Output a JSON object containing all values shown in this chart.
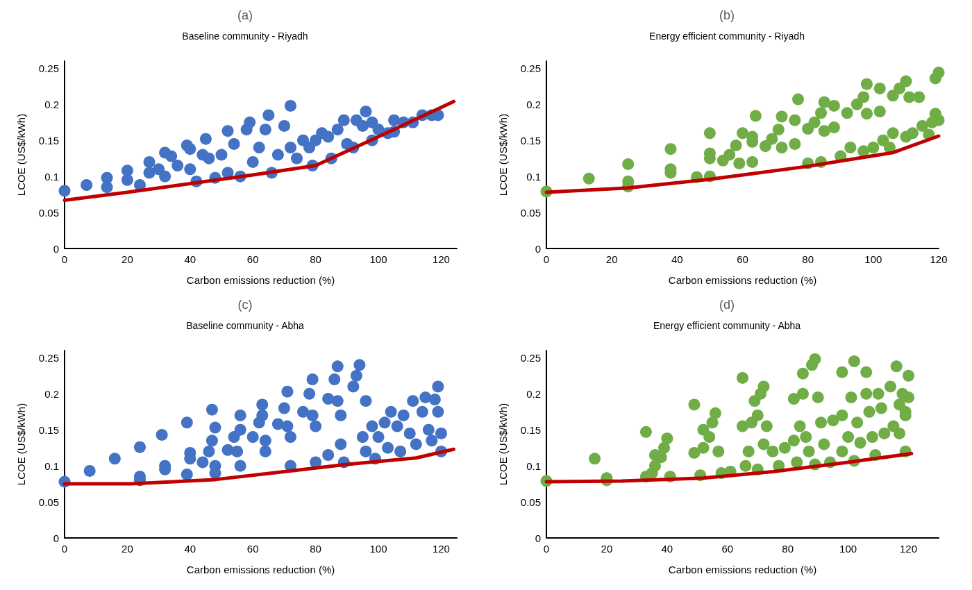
{
  "chart_data": [
    {
      "type": "scatter",
      "title": "(a)",
      "subtitle": "Baseline community - Riyadh",
      "xlabel": "Carbon emissions reduction (%)",
      "ylabel": "LCOE (US$/kWh)",
      "xlim": [
        0,
        125
      ],
      "xticks": [
        0,
        20,
        40,
        60,
        80,
        100,
        120
      ],
      "ylim": [
        0,
        0.26
      ],
      "yticks": [
        0,
        0.05,
        0.1,
        0.15,
        0.2,
        0.25
      ],
      "marker": "circle",
      "series": [
        {
          "type": "scatter",
          "color": "#4472c4",
          "x": [
            0,
            7,
            13.5,
            13.5,
            20,
            20,
            24,
            27,
            27,
            30,
            32,
            32,
            34,
            36,
            39,
            40,
            40,
            42,
            44,
            45,
            46,
            48,
            50,
            52,
            52,
            54,
            56,
            58,
            59,
            60,
            62,
            64,
            65,
            66,
            68,
            70,
            72,
            72,
            74,
            76,
            78,
            79,
            80,
            82,
            84,
            85,
            87,
            89,
            90,
            92,
            93,
            95,
            96,
            98,
            98,
            100,
            103,
            105,
            105,
            108,
            111,
            114,
            117,
            119
          ],
          "values": [
            0.08,
            0.088,
            0.098,
            0.085,
            0.108,
            0.095,
            0.088,
            0.12,
            0.105,
            0.11,
            0.133,
            0.1,
            0.128,
            0.115,
            0.143,
            0.138,
            0.11,
            0.093,
            0.13,
            0.152,
            0.125,
            0.098,
            0.13,
            0.163,
            0.105,
            0.145,
            0.1,
            0.165,
            0.175,
            0.12,
            0.14,
            0.165,
            0.185,
            0.105,
            0.13,
            0.17,
            0.198,
            0.14,
            0.125,
            0.15,
            0.14,
            0.115,
            0.15,
            0.16,
            0.155,
            0.125,
            0.165,
            0.178,
            0.145,
            0.14,
            0.178,
            0.17,
            0.19,
            0.175,
            0.15,
            0.165,
            0.16,
            0.178,
            0.162,
            0.175,
            0.175,
            0.185,
            0.185,
            0.185
          ]
        },
        {
          "type": "line",
          "color": "#c00000",
          "marker": "none",
          "x": [
            0,
            20,
            40,
            60,
            80,
            100,
            124
          ],
          "values": [
            0.067,
            0.078,
            0.09,
            0.102,
            0.115,
            0.155,
            0.204
          ]
        }
      ]
    },
    {
      "type": "scatter",
      "title": "(b)",
      "subtitle": "Energy efficient community - Riyadh",
      "xlabel": "Carbon emissions reduction (%)",
      "ylabel": "LCOE (US$/kWh)",
      "xlim": [
        0,
        120
      ],
      "xticks": [
        0,
        20,
        40,
        60,
        80,
        100,
        120
      ],
      "ylim": [
        0,
        0.26
      ],
      "yticks": [
        0,
        0.05,
        0.1,
        0.15,
        0.2,
        0.25
      ],
      "marker": "circle",
      "series": [
        {
          "type": "scatter",
          "color": "#70ad47",
          "x": [
            0,
            13,
            25,
            25,
            25,
            38,
            38,
            38,
            46,
            50,
            50,
            50,
            50,
            54,
            56,
            58,
            59,
            60,
            63,
            63,
            63,
            64,
            67,
            69,
            71,
            72,
            72,
            76,
            76,
            77,
            80,
            80,
            82,
            84,
            84,
            85,
            85,
            88,
            88,
            90,
            92,
            93,
            95,
            97,
            97,
            98,
            98,
            100,
            102,
            102,
            103,
            105,
            106,
            106,
            108,
            110,
            110,
            111,
            112,
            114,
            115,
            117,
            118,
            119,
            119,
            120,
            120
          ],
          "values": [
            0.079,
            0.097,
            0.117,
            0.093,
            0.086,
            0.138,
            0.11,
            0.105,
            0.099,
            0.16,
            0.132,
            0.125,
            0.1,
            0.122,
            0.13,
            0.143,
            0.118,
            0.16,
            0.155,
            0.148,
            0.12,
            0.184,
            0.142,
            0.152,
            0.165,
            0.14,
            0.183,
            0.178,
            0.145,
            0.207,
            0.166,
            0.118,
            0.175,
            0.188,
            0.12,
            0.163,
            0.203,
            0.198,
            0.168,
            0.128,
            0.188,
            0.14,
            0.2,
            0.21,
            0.135,
            0.187,
            0.228,
            0.14,
            0.222,
            0.19,
            0.15,
            0.14,
            0.212,
            0.16,
            0.222,
            0.232,
            0.155,
            0.21,
            0.16,
            0.21,
            0.17,
            0.158,
            0.175,
            0.187,
            0.236,
            0.244,
            0.178
          ]
        },
        {
          "type": "line",
          "color": "#c00000",
          "marker": "none",
          "x": [
            0,
            25,
            50,
            80,
            106,
            120
          ],
          "values": [
            0.078,
            0.084,
            0.096,
            0.114,
            0.133,
            0.156
          ]
        }
      ]
    },
    {
      "type": "scatter",
      "title": "(c)",
      "subtitle": "Baseline community - Abha",
      "xlabel": "Carbon emissions reduction (%)",
      "ylabel": "LCOE (US$/kWh)",
      "xlim": [
        0,
        125
      ],
      "xticks": [
        0,
        20,
        40,
        60,
        80,
        100,
        120
      ],
      "ylim": [
        0,
        0.26
      ],
      "yticks": [
        0,
        0.05,
        0.1,
        0.15,
        0.2,
        0.25
      ],
      "marker": "circle",
      "series": [
        {
          "type": "scatter",
          "color": "#4472c4",
          "x": [
            0,
            8,
            16,
            24,
            24,
            24,
            31,
            32,
            32,
            39,
            39,
            40,
            40,
            44,
            46,
            47,
            47,
            48,
            48,
            48,
            52,
            54,
            55,
            56,
            56,
            56,
            60,
            62,
            63,
            63,
            64,
            64,
            68,
            70,
            71,
            71,
            72,
            72,
            76,
            78,
            79,
            79,
            80,
            80,
            84,
            84,
            86,
            87,
            87,
            88,
            88,
            89,
            92,
            93,
            94,
            95,
            96,
            96,
            98,
            99,
            100,
            102,
            103,
            104,
            106,
            107,
            108,
            110,
            111,
            112,
            114,
            115,
            116,
            117,
            118,
            119,
            119,
            120,
            120
          ],
          "values": [
            0.078,
            0.093,
            0.11,
            0.126,
            0.085,
            0.08,
            0.143,
            0.1,
            0.095,
            0.16,
            0.088,
            0.118,
            0.11,
            0.105,
            0.12,
            0.178,
            0.135,
            0.1,
            0.153,
            0.09,
            0.122,
            0.14,
            0.12,
            0.17,
            0.15,
            0.1,
            0.14,
            0.16,
            0.17,
            0.185,
            0.135,
            0.12,
            0.158,
            0.18,
            0.203,
            0.155,
            0.1,
            0.14,
            0.175,
            0.2,
            0.22,
            0.17,
            0.155,
            0.105,
            0.193,
            0.115,
            0.22,
            0.238,
            0.19,
            0.17,
            0.13,
            0.105,
            0.21,
            0.225,
            0.24,
            0.14,
            0.19,
            0.12,
            0.155,
            0.11,
            0.14,
            0.16,
            0.125,
            0.175,
            0.155,
            0.12,
            0.17,
            0.145,
            0.19,
            0.13,
            0.175,
            0.195,
            0.15,
            0.135,
            0.192,
            0.21,
            0.175,
            0.145,
            0.12
          ]
        },
        {
          "type": "line",
          "color": "#c00000",
          "marker": "none",
          "x": [
            0,
            21,
            48,
            70,
            90,
            112,
            124
          ],
          "values": [
            0.075,
            0.075,
            0.081,
            0.092,
            0.102,
            0.111,
            0.123
          ]
        }
      ]
    },
    {
      "type": "scatter",
      "title": "(d)",
      "subtitle": "Energy efficient community - Abha",
      "xlabel": "Carbon emissions reduction (%)",
      "ylabel": "LCOE (US$/kWh)",
      "xlim": [
        0,
        130
      ],
      "xticks": [
        0,
        20,
        40,
        60,
        80,
        100,
        120
      ],
      "ylim": [
        0,
        0.26
      ],
      "yticks": [
        0,
        0.05,
        0.1,
        0.15,
        0.2,
        0.25
      ],
      "marker": "circle",
      "series": [
        {
          "type": "scatter",
          "color": "#70ad47",
          "x": [
            0,
            16,
            20,
            20,
            33,
            33,
            35,
            36,
            36,
            38,
            39,
            40,
            41,
            49,
            49,
            51,
            52,
            52,
            54,
            55,
            56,
            57,
            58,
            61,
            65,
            65,
            66,
            67,
            68,
            69,
            70,
            70,
            71,
            72,
            72,
            73,
            75,
            77,
            79,
            82,
            82,
            83,
            84,
            85,
            85,
            86,
            87,
            88,
            89,
            89,
            90,
            91,
            92,
            94,
            95,
            98,
            98,
            98,
            100,
            101,
            102,
            102,
            103,
            104,
            106,
            106,
            107,
            108,
            109,
            110,
            111,
            112,
            114,
            115,
            116,
            117,
            117,
            118,
            119,
            119,
            120,
            120,
            119
          ],
          "values": [
            0.079,
            0.11,
            0.083,
            0.08,
            0.147,
            0.085,
            0.09,
            0.1,
            0.115,
            0.112,
            0.125,
            0.138,
            0.085,
            0.185,
            0.118,
            0.087,
            0.125,
            0.15,
            0.14,
            0.16,
            0.173,
            0.12,
            0.09,
            0.092,
            0.222,
            0.155,
            0.1,
            0.12,
            0.16,
            0.19,
            0.095,
            0.17,
            0.2,
            0.21,
            0.13,
            0.155,
            0.12,
            0.1,
            0.125,
            0.193,
            0.135,
            0.105,
            0.155,
            0.2,
            0.228,
            0.14,
            0.12,
            0.24,
            0.248,
            0.102,
            0.195,
            0.16,
            0.13,
            0.105,
            0.163,
            0.23,
            0.17,
            0.12,
            0.14,
            0.195,
            0.245,
            0.107,
            0.16,
            0.132,
            0.2,
            0.23,
            0.175,
            0.14,
            0.115,
            0.2,
            0.18,
            0.145,
            0.21,
            0.155,
            0.238,
            0.185,
            0.145,
            0.2,
            0.175,
            0.12,
            0.225,
            0.195,
            0.17
          ]
        },
        {
          "type": "line",
          "color": "#c00000",
          "marker": "none",
          "x": [
            0,
            25,
            52,
            75,
            100,
            121
          ],
          "values": [
            0.078,
            0.079,
            0.083,
            0.092,
            0.105,
            0.117
          ]
        }
      ]
    }
  ]
}
